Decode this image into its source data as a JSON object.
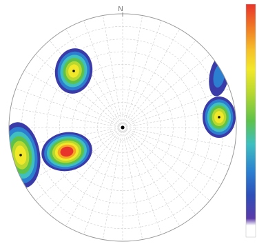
{
  "net": {
    "north_label": "N"
  }
}
